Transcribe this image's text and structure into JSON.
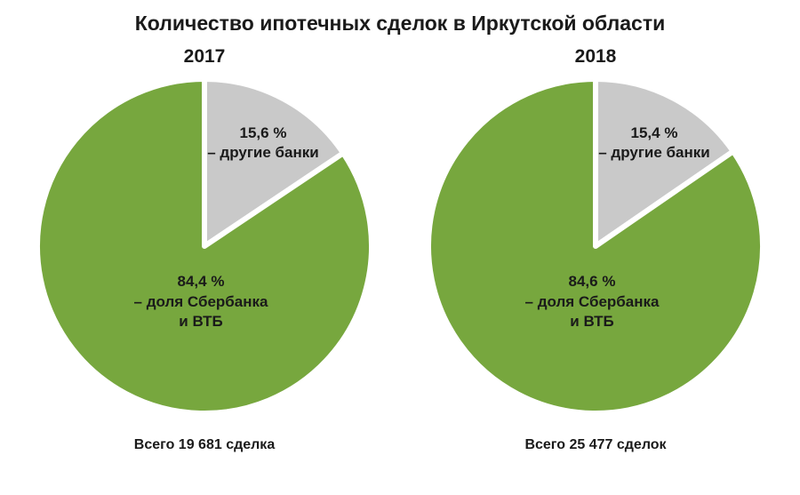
{
  "title": "Количество ипотечных сделок в Иркутской области",
  "colors": {
    "green": "#77A73E",
    "gray": "#C9C9C9",
    "text": "#1a1a1a",
    "background": "#ffffff",
    "slice_stroke": "#ffffff"
  },
  "chart_data": [
    {
      "type": "pie",
      "year": "2017",
      "start_angle_deg": 0,
      "direction": "clockwise",
      "slices": [
        {
          "name": "other-banks",
          "value": 15.6,
          "color": "#C9C9C9",
          "label_lines": [
            "15,6 %",
            "– другие банки"
          ]
        },
        {
          "name": "sberbank-vtb",
          "value": 84.4,
          "color": "#77A73E",
          "label_lines": [
            "84,4 %",
            "– доля Сбербанка",
            "и ВТБ"
          ]
        }
      ],
      "total_caption": "Всего 19 681 сделка"
    },
    {
      "type": "pie",
      "year": "2018",
      "start_angle_deg": 0,
      "direction": "clockwise",
      "slices": [
        {
          "name": "other-banks",
          "value": 15.4,
          "color": "#C9C9C9",
          "label_lines": [
            "15,4 %",
            "– другие банки"
          ]
        },
        {
          "name": "sberbank-vtb",
          "value": 84.6,
          "color": "#77A73E",
          "label_lines": [
            "84,6 %",
            "– доля Сбербанка",
            "и ВТБ"
          ]
        }
      ],
      "total_caption": "Всего 25 477 сделок"
    }
  ]
}
